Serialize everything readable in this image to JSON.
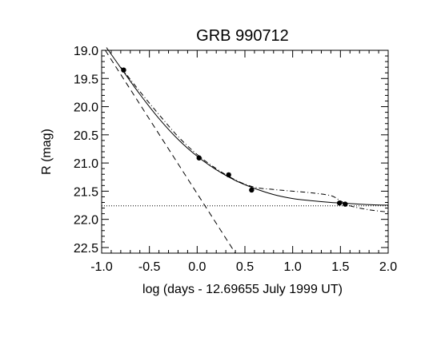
{
  "chart_data": {
    "type": "scatter",
    "title": "GRB 990712",
    "xlabel": "log (days - 12.69655 July 1999 UT)",
    "ylabel": "R (mag)",
    "xlim": [
      -1.0,
      2.0
    ],
    "ylim": [
      22.6,
      19.0
    ],
    "y_inverted": true,
    "x_ticks": [
      "-1.0",
      "-0.5",
      "0.0",
      "0.5",
      "1.0",
      "1.5",
      "2.0"
    ],
    "x_tick_values": [
      -1.0,
      -0.5,
      0.0,
      0.5,
      1.0,
      1.5,
      2.0
    ],
    "y_ticks": [
      "19.0",
      "19.5",
      "20.0",
      "20.5",
      "21.0",
      "21.5",
      "22.0",
      "22.5"
    ],
    "y_tick_values": [
      19.0,
      19.5,
      20.0,
      20.5,
      21.0,
      21.5,
      22.0,
      22.5
    ],
    "grid": false,
    "observations": {
      "x": [
        -0.77,
        0.02,
        0.33,
        0.57,
        1.49,
        1.55
      ],
      "y": [
        19.35,
        20.91,
        21.21,
        21.48,
        21.71,
        21.73
      ]
    },
    "fit_solid": {
      "x": [
        -0.95,
        -0.8,
        -0.6,
        -0.4,
        -0.2,
        0.0,
        0.2,
        0.4,
        0.6,
        0.8,
        1.0,
        1.2,
        1.4,
        1.6,
        1.8,
        2.0
      ],
      "y": [
        18.95,
        19.31,
        19.78,
        20.21,
        20.58,
        20.88,
        21.12,
        21.31,
        21.45,
        21.56,
        21.63,
        21.67,
        21.7,
        21.72,
        21.74,
        21.75
      ]
    },
    "fit_dashdot": {
      "x": [
        -0.8,
        -0.6,
        -0.4,
        -0.2,
        0.0,
        0.2,
        0.4,
        0.6,
        0.8,
        1.0,
        1.2,
        1.4,
        1.5,
        1.6,
        1.8,
        2.0
      ],
      "y": [
        19.3,
        19.73,
        20.14,
        20.53,
        20.85,
        21.1,
        21.3,
        21.43,
        21.47,
        21.5,
        21.53,
        21.58,
        21.67,
        21.76,
        21.83,
        21.87
      ]
    },
    "afterglow_dashed": {
      "x": [
        -1.0,
        0.4
      ],
      "y": [
        18.9,
        22.6
      ]
    },
    "host_dotted": {
      "x": [
        -1.0,
        2.0
      ],
      "y": [
        21.76,
        21.76
      ]
    }
  }
}
